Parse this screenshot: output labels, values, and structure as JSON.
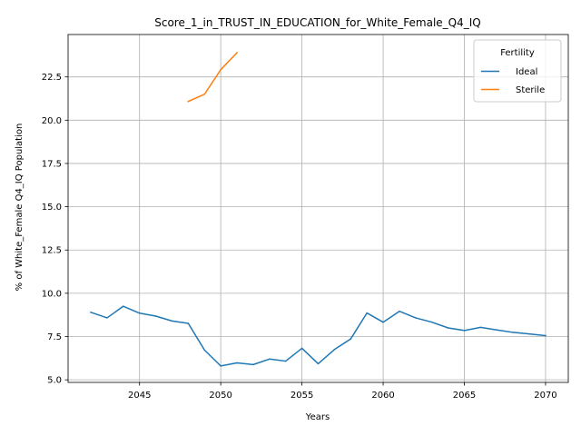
{
  "chart_data": {
    "type": "line",
    "title": "Score_1_in_TRUST_IN_EDUCATION_for_White_Female_Q4_IQ",
    "xlabel": "Years",
    "ylabel": "% of White_Female Q4_IQ Population",
    "xlim": [
      2040.6,
      2071.4
    ],
    "ylim": [
      4.85,
      24.95
    ],
    "xticks": [
      2045,
      2050,
      2055,
      2060,
      2065,
      2070
    ],
    "xtick_labels": [
      "2045",
      "2050",
      "2055",
      "2060",
      "2065",
      "2070"
    ],
    "yticks": [
      5.0,
      7.5,
      10.0,
      12.5,
      15.0,
      17.5,
      20.0,
      22.5
    ],
    "ytick_labels": [
      "5.0",
      "7.5",
      "10.0",
      "12.5",
      "15.0",
      "17.5",
      "20.0",
      "22.5"
    ],
    "grid": true,
    "legend": {
      "title": "Fertility",
      "placement": "top-right"
    },
    "series": [
      {
        "name": "Ideal",
        "color": "#1f77b4",
        "x": [
          2042,
          2043,
          2044,
          2045,
          2046,
          2047,
          2048,
          2049,
          2050,
          2051,
          2052,
          2053,
          2054,
          2055,
          2056,
          2057,
          2058,
          2059,
          2060,
          2061,
          2062,
          2063,
          2064,
          2065,
          2066,
          2067,
          2068,
          2069,
          2070
        ],
        "values": [
          8.9,
          8.58,
          9.25,
          8.85,
          8.68,
          8.4,
          8.26,
          6.72,
          5.8,
          5.98,
          5.88,
          6.2,
          6.08,
          6.82,
          5.93,
          6.75,
          7.36,
          8.86,
          8.33,
          8.96,
          8.58,
          8.33,
          8.0,
          7.85,
          8.03,
          7.88,
          7.74,
          7.65,
          7.55
        ]
      },
      {
        "name": "Sterile",
        "color": "#ff7f0e",
        "x": [
          2048,
          2049,
          2050,
          2051
        ],
        "values": [
          21.08,
          21.5,
          22.92,
          23.9
        ]
      }
    ]
  }
}
